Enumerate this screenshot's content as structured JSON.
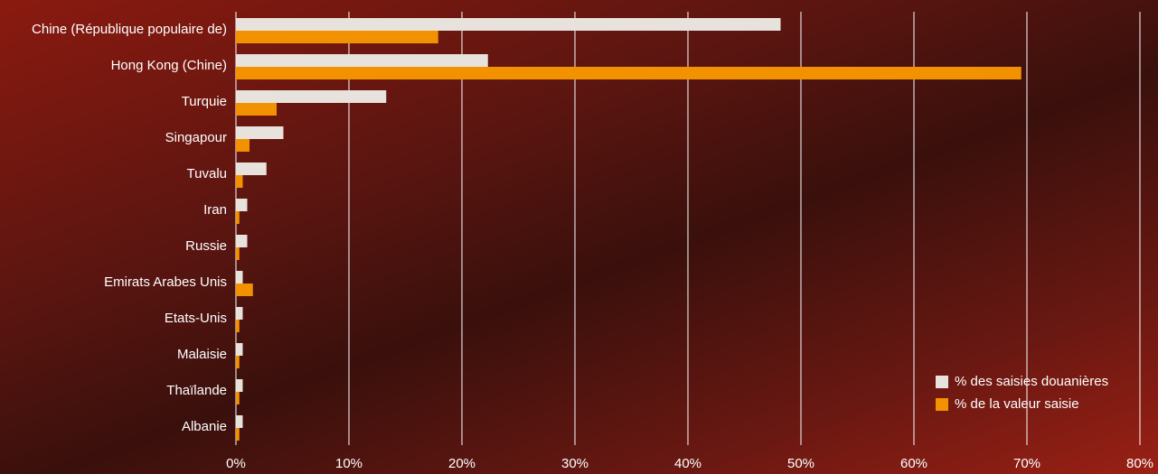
{
  "chart_data": {
    "type": "bar",
    "orientation": "horizontal",
    "categories": [
      "Chine (République populaire de)",
      "Hong Kong (Chine)",
      "Turquie",
      "Singapour",
      "Tuvalu",
      "Iran",
      "Russie",
      "Emirats Arabes Unis",
      "Etats-Unis",
      "Malaisie",
      "Thaïlande",
      "Albanie"
    ],
    "series": [
      {
        "name": "% des saisies douanières",
        "color": "#e8e2dc",
        "values": [
          48.2,
          22.3,
          13.3,
          4.2,
          2.7,
          1.0,
          1.0,
          0.6,
          0.6,
          0.6,
          0.6,
          0.6
        ]
      },
      {
        "name": "% de la valeur saisie",
        "color": "#f39200",
        "values": [
          17.9,
          69.5,
          3.6,
          1.2,
          0.6,
          0.3,
          0.3,
          1.5,
          0.3,
          0.3,
          0.3,
          0.3
        ]
      }
    ],
    "xlim": [
      0,
      80
    ],
    "xticks": [
      {
        "value": 0,
        "label": "0%"
      },
      {
        "value": 10,
        "label": "10%"
      },
      {
        "value": 20,
        "label": "20%"
      },
      {
        "value": 30,
        "label": "30%"
      },
      {
        "value": 40,
        "label": "40%"
      },
      {
        "value": 50,
        "label": "50%"
      },
      {
        "value": 60,
        "label": "60%"
      },
      {
        "value": 70,
        "label": "70%"
      },
      {
        "value": 80,
        "label": "80%"
      }
    ],
    "grid": true,
    "legend": "lower right"
  }
}
